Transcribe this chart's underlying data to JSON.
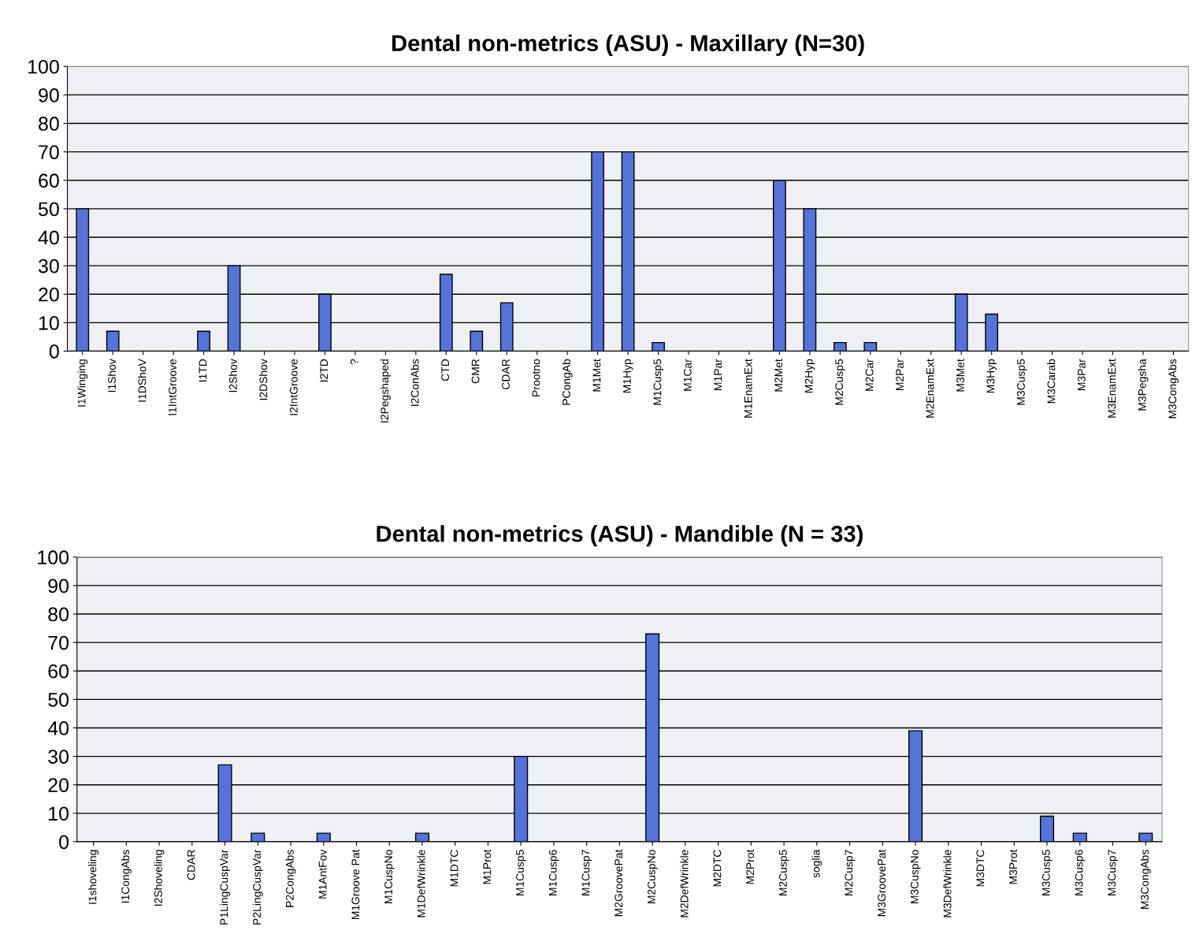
{
  "chart_data": [
    {
      "type": "bar",
      "title": "Dental non-metrics (ASU) - Maxillary (N=30)",
      "categories": [
        "I1Winging",
        "I1Shov",
        "I1DShoV",
        "I1IntGroove",
        "I1TD",
        "I2Shov",
        "I2DShov",
        "I2IntGroove",
        "I2TD",
        "?",
        "I2Pegshaped",
        "I2ConAbs",
        "CTD",
        "CMR",
        "CDAR",
        "Prootno",
        "PCongAb",
        "M1Met",
        "M1Hyp",
        "M1Cusp5",
        "M1Car",
        "M1Par",
        "M1EnamExt",
        "M2Met",
        "M2Hyp",
        "M2Cusp5",
        "M2Car",
        "M2Par",
        "M2EnamExt",
        "M3Met",
        "M3Hyp",
        "M3Cusp5",
        "M3Carab",
        "M3Par",
        "M3EnamExt",
        "M3Pegsha",
        "M3CongAbs"
      ],
      "values": [
        50,
        7,
        0,
        0,
        7,
        30,
        0,
        0,
        20,
        0,
        0,
        0,
        27,
        7,
        17,
        0,
        0,
        70,
        70,
        3,
        0,
        0,
        0,
        60,
        50,
        3,
        3,
        0,
        0,
        20,
        13,
        0,
        0,
        0,
        0,
        0,
        0
      ],
      "color": "#5573d8",
      "ylim": [
        0,
        100
      ],
      "yticks": [
        0,
        10,
        20,
        30,
        40,
        50,
        60,
        70,
        80,
        90,
        100
      ],
      "grid": "y"
    },
    {
      "type": "bar",
      "title": "Dental non-metrics (ASU) - Mandible (N = 33)",
      "categories": [
        "I1shoveling",
        "I1CongAbs",
        "I2Shoveling",
        "CDAR",
        "P1LingCuspVar",
        "P2LingCuspVar",
        "P2CongAbs",
        "M1AntFov",
        "M1Groove Pat",
        "M1CuspNo",
        "M1DefWrinkle",
        "M1DTC",
        "M1Prot",
        "M1Cusp5",
        "M1Cusp6",
        "M1Cusp7",
        "M2GroovePat",
        "M2CuspNo",
        "M2DefWrinkle",
        "M2DTC",
        "M2Prot",
        "M2Cusp5",
        "soglia",
        "M2Cusp7",
        "M3GroovePat",
        "M3CuspNo",
        "M3DefWrinkle",
        "M3DTC",
        "M3Prot",
        "M3Cusp5",
        "M3Cusp6",
        "M3Cusp7",
        "M3CongAbs"
      ],
      "values": [
        0,
        0,
        0,
        0,
        27,
        3,
        0,
        3,
        0,
        0,
        3,
        0,
        0,
        30,
        0,
        0,
        0,
        73,
        0,
        0,
        0,
        0,
        0,
        0,
        0,
        39,
        0,
        0,
        0,
        9,
        3,
        0,
        3
      ],
      "color": "#5573d8",
      "ylim": [
        0,
        100
      ],
      "yticks": [
        0,
        10,
        20,
        30,
        40,
        50,
        60,
        70,
        80,
        90,
        100
      ],
      "grid": "y"
    }
  ]
}
